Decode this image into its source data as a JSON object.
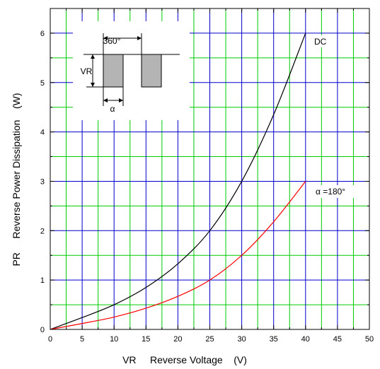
{
  "chart_data": {
    "type": "line",
    "title": "",
    "xlabel": "VR     Reverse Voltage    (V)",
    "ylabel": "PR     Reverse Power Dissipation    (W)",
    "xlim": [
      0,
      50
    ],
    "ylim": [
      0,
      6.5
    ],
    "x_ticks": [
      "0",
      "5",
      "10",
      "15",
      "20",
      "25",
      "30",
      "35",
      "40",
      "45",
      "50"
    ],
    "y_ticks": [
      "0",
      "1",
      "2",
      "3",
      "4",
      "5",
      "6"
    ],
    "grid": true,
    "series": [
      {
        "name": "DC",
        "color": "#000000",
        "x": [
          0,
          5,
          10,
          15,
          20,
          25,
          30,
          35,
          40
        ],
        "y": [
          0,
          0.24,
          0.5,
          0.85,
          1.33,
          2.0,
          3.0,
          4.35,
          6.0
        ]
      },
      {
        "name": "α =180°",
        "color": "#ff0000",
        "x": [
          0,
          5,
          10,
          15,
          20,
          25,
          30,
          35,
          40
        ],
        "y": [
          0,
          0.12,
          0.25,
          0.43,
          0.67,
          1.0,
          1.5,
          2.18,
          3.0
        ]
      }
    ],
    "inset": {
      "period_label": "360°",
      "amplitude_label": "VR",
      "width_label": "α"
    },
    "colors": {
      "grid_major": "#0000cc",
      "grid_minor": "#00cc00",
      "pulse_fill": "#b4b4b4"
    }
  }
}
